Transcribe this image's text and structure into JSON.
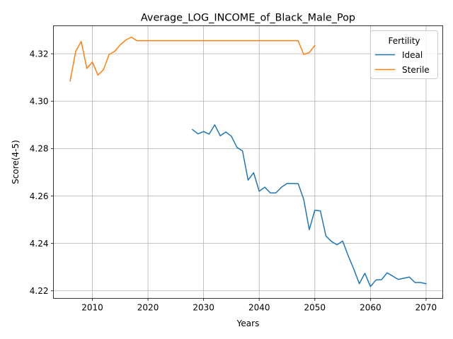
{
  "chart_data": {
    "type": "line",
    "title": "Average_LOG_INCOME_of_Black_Male_Pop",
    "xlabel": "Years",
    "ylabel": "Score(4-5)",
    "xlim": [
      2003,
      2073
    ],
    "ylim": [
      4.2168,
      4.3318
    ],
    "xticks": [
      2010,
      2020,
      2030,
      2040,
      2050,
      2060,
      2070
    ],
    "yticks": [
      4.22,
      4.24,
      4.26,
      4.28,
      4.3,
      4.32
    ],
    "ytick_labels": [
      "4.22",
      "4.24",
      "4.26",
      "4.28",
      "4.30",
      "4.32"
    ],
    "grid": true,
    "legend": {
      "title": "Fertility",
      "position": "top-right"
    },
    "series": [
      {
        "name": "Ideal",
        "color": "#1f77b4",
        "x": [
          2028,
          2029,
          2030,
          2031,
          2032,
          2033,
          2034,
          2035,
          2036,
          2037,
          2038,
          2039,
          2040,
          2041,
          2042,
          2043,
          2044,
          2045,
          2046,
          2047,
          2048,
          2049,
          2050,
          2051,
          2052,
          2053,
          2054,
          2055,
          2056,
          2057,
          2058,
          2059,
          2060,
          2061,
          2062,
          2063,
          2064,
          2065,
          2066,
          2067,
          2068,
          2069,
          2070
        ],
        "y": [
          4.288,
          4.2862,
          4.2872,
          4.2861,
          4.29,
          4.2854,
          4.287,
          4.2852,
          4.2805,
          4.279,
          4.2667,
          4.2698,
          4.262,
          4.2637,
          4.2613,
          4.2613,
          4.2637,
          4.2653,
          4.2653,
          4.2652,
          4.2586,
          4.2458,
          4.254,
          4.2537,
          4.2431,
          4.2408,
          4.2394,
          4.241,
          4.2348,
          4.2292,
          4.223,
          4.2274,
          4.2218,
          4.2246,
          4.2247,
          4.2276,
          4.2262,
          4.2248,
          4.2253,
          4.2258,
          4.2235,
          4.2235,
          4.223
        ]
      },
      {
        "name": "Sterile",
        "color": "#ff7f0e",
        "x": [
          2006,
          2007,
          2008,
          2009,
          2010,
          2011,
          2012,
          2013,
          2014,
          2015,
          2016,
          2017,
          2018,
          2019,
          2020,
          2021,
          2022,
          2023,
          2024,
          2025,
          2026,
          2027,
          2028,
          2029,
          2030,
          2031,
          2032,
          2033,
          2034,
          2035,
          2036,
          2037,
          2038,
          2039,
          2040,
          2041,
          2042,
          2043,
          2044,
          2045,
          2046,
          2047,
          2048,
          2049,
          2050
        ],
        "y": [
          4.3085,
          4.321,
          4.3252,
          4.3138,
          4.3165,
          4.311,
          4.3133,
          4.3197,
          4.321,
          4.3237,
          4.3258,
          4.327,
          4.3255,
          4.3255,
          4.3255,
          4.3255,
          4.3255,
          4.3255,
          4.3255,
          4.3255,
          4.3255,
          4.3255,
          4.3255,
          4.3255,
          4.3255,
          4.3255,
          4.3255,
          4.3255,
          4.3255,
          4.3255,
          4.3255,
          4.3255,
          4.3255,
          4.3255,
          4.3255,
          4.3255,
          4.3255,
          4.3255,
          4.3255,
          4.3255,
          4.3255,
          4.3255,
          4.3197,
          4.3205,
          4.3235
        ]
      }
    ]
  }
}
